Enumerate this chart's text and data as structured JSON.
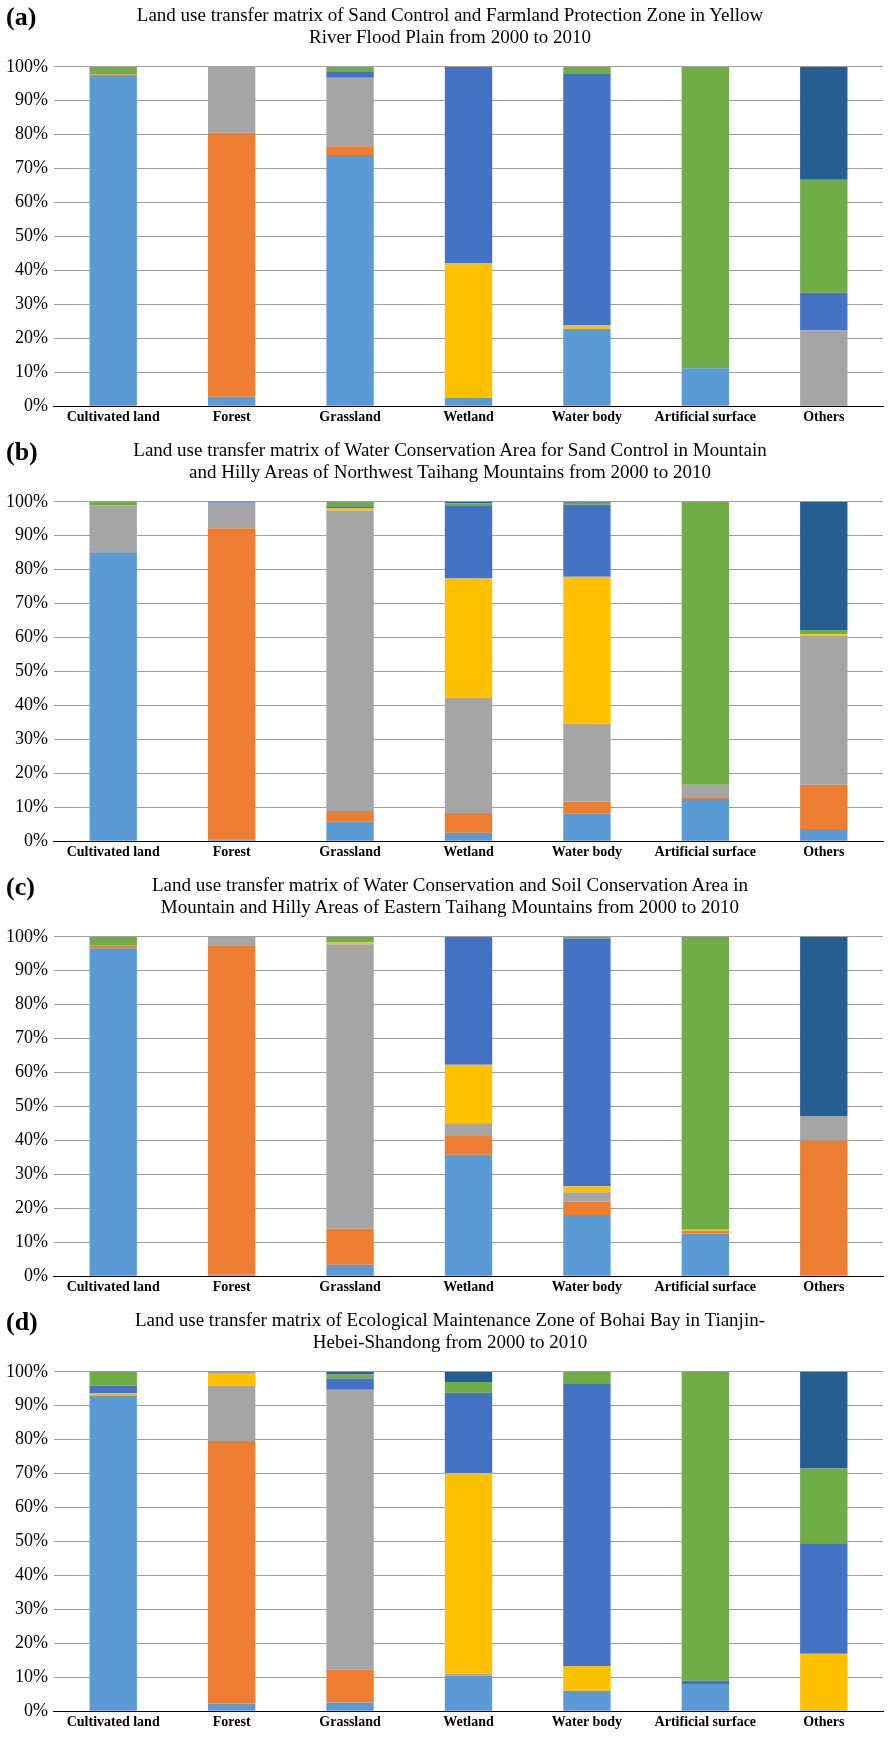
{
  "chart_data": [
    {
      "type": "bar",
      "stacked": true,
      "title": "Land use transfer matrix of Sand Control and Farmland Protection Zone in Yellow River Flood Plain from 2000 to 2010",
      "annotations": [
        "(a)"
      ],
      "categories": [
        "Cultivated land",
        "Forest",
        "Grassland",
        "Wetland",
        "Water body",
        "Artificial surface",
        "Others"
      ],
      "ylim": [
        0,
        100
      ],
      "yticks": [
        {
          "value": 0,
          "label": "0%"
        },
        {
          "value": 10,
          "label": "10%"
        },
        {
          "value": 20,
          "label": "20%"
        },
        {
          "value": 30,
          "label": "30%"
        },
        {
          "value": 40,
          "label": "40%"
        },
        {
          "value": 50,
          "label": "50%"
        },
        {
          "value": 60,
          "label": "60%"
        },
        {
          "value": 70,
          "label": "70%"
        },
        {
          "value": 80,
          "label": "80%"
        },
        {
          "value": 90,
          "label": "90%"
        },
        {
          "value": 100,
          "label": "100%"
        }
      ],
      "grid": "y",
      "series": [
        {
          "color": "#5b9bd5",
          "values": [
            97.3,
            2.8,
            74,
            2.4,
            22.8,
            11.2,
            0
          ]
        },
        {
          "color": "#ed7d31",
          "values": [
            0.4,
            77.8,
            2.6,
            0,
            0,
            0,
            0
          ]
        },
        {
          "color": "#a5a5a5",
          "values": [
            0,
            19.4,
            20.2,
            0,
            0,
            0,
            22.3
          ]
        },
        {
          "color": "#ffc000",
          "values": [
            0,
            0,
            0,
            39.8,
            1,
            0,
            0
          ]
        },
        {
          "color": "#4472c4",
          "values": [
            0,
            0,
            1.9,
            57.8,
            74.1,
            0,
            11.1
          ]
        },
        {
          "color": "#70ad47",
          "values": [
            2.3,
            0,
            1.3,
            0,
            2.1,
            88.8,
            33.3
          ]
        },
        {
          "color": "#255e91",
          "values": [
            0,
            0,
            0,
            0,
            0,
            0,
            33.3
          ]
        }
      ]
    },
    {
      "type": "bar",
      "stacked": true,
      "title": "Land use transfer matrix of Water Conservation Area for Sand Control in Mountain and Hilly Areas of Northwest Taihang Mountains from 2000 to 2010",
      "annotations": [
        "(b)"
      ],
      "categories": [
        "Cultivated land",
        "Forest",
        "Grassland",
        "Wetland",
        "Water body",
        "Artificial surface",
        "Others"
      ],
      "ylim": [
        0,
        100
      ],
      "yticks": [
        {
          "value": 0,
          "label": "0%"
        },
        {
          "value": 10,
          "label": "10%"
        },
        {
          "value": 20,
          "label": "20%"
        },
        {
          "value": 30,
          "label": "30%"
        },
        {
          "value": 40,
          "label": "40%"
        },
        {
          "value": 50,
          "label": "50%"
        },
        {
          "value": 60,
          "label": "60%"
        },
        {
          "value": 70,
          "label": "70%"
        },
        {
          "value": 80,
          "label": "80%"
        },
        {
          "value": 90,
          "label": "90%"
        },
        {
          "value": 100,
          "label": "100%"
        }
      ],
      "grid": "y",
      "series": [
        {
          "color": "#5b9bd5",
          "values": [
            85.1,
            0.6,
            5.9,
            2.5,
            8.1,
            12.4,
            3.6
          ]
        },
        {
          "color": "#ed7d31",
          "values": [
            0.3,
            91.6,
            3,
            5.8,
            3.5,
            0.3,
            13
          ]
        },
        {
          "color": "#a5a5a5",
          "values": [
            13.6,
            7.5,
            88.5,
            34,
            23,
            3.9,
            43.9
          ]
        },
        {
          "color": "#ffc000",
          "values": [
            0,
            0,
            0.8,
            35.1,
            43.3,
            0,
            0.5
          ]
        },
        {
          "color": "#4472c4",
          "values": [
            0,
            0.3,
            0.5,
            21.6,
            21.2,
            0,
            0
          ]
        },
        {
          "color": "#70ad47",
          "values": [
            1,
            0,
            1.3,
            0.6,
            0.6,
            83.4,
            1.2
          ]
        },
        {
          "color": "#255e91",
          "values": [
            0,
            0,
            0,
            0.4,
            0.3,
            0,
            37.8
          ]
        }
      ]
    },
    {
      "type": "bar",
      "stacked": true,
      "title": "Land use transfer matrix of Water Conservation and Soil Conservation Area in Mountain and Hilly Areas of Eastern Taihang Mountains from 2000 to 2010",
      "annotations": [
        "(c)"
      ],
      "categories": [
        "Cultivated land",
        "Forest",
        "Grassland",
        "Wetland",
        "Water body",
        "Artificial surface",
        "Others"
      ],
      "ylim": [
        0,
        100
      ],
      "yticks": [
        {
          "value": 0,
          "label": "0%"
        },
        {
          "value": 10,
          "label": "10%"
        },
        {
          "value": 20,
          "label": "20%"
        },
        {
          "value": 30,
          "label": "30%"
        },
        {
          "value": 40,
          "label": "40%"
        },
        {
          "value": 50,
          "label": "50%"
        },
        {
          "value": 60,
          "label": "60%"
        },
        {
          "value": 70,
          "label": "70%"
        },
        {
          "value": 80,
          "label": "80%"
        },
        {
          "value": 90,
          "label": "90%"
        },
        {
          "value": 100,
          "label": "100%"
        }
      ],
      "grid": "y",
      "series": [
        {
          "color": "#5b9bd5",
          "values": [
            96.6,
            0.4,
            3.4,
            35.8,
            18,
            12.6,
            0
          ]
        },
        {
          "color": "#ed7d31",
          "values": [
            0.8,
            97.1,
            10.6,
            5.5,
            4,
            0.8,
            40
          ]
        },
        {
          "color": "#a5a5a5",
          "values": [
            0,
            2.5,
            83.8,
            3.8,
            2.7,
            0,
            7.2
          ]
        },
        {
          "color": "#ffc000",
          "values": [
            0,
            0,
            0.5,
            17.2,
            1.8,
            0.3,
            0
          ]
        },
        {
          "color": "#4472c4",
          "values": [
            0,
            0,
            0,
            37.7,
            73,
            0,
            0
          ]
        },
        {
          "color": "#70ad47",
          "values": [
            2.6,
            0,
            1.7,
            0,
            0.5,
            86.3,
            0
          ]
        },
        {
          "color": "#255e91",
          "values": [
            0,
            0,
            0,
            0,
            0,
            0,
            52.8
          ]
        }
      ]
    },
    {
      "type": "bar",
      "stacked": true,
      "title": "Land use transfer matrix of Ecological Maintenance Zone of Bohai Bay in Tianjin-Hebei-Shandong from 2000 to 2010",
      "annotations": [
        "(d)"
      ],
      "categories": [
        "Cultivated land",
        "Forest",
        "Grassland",
        "Wetland",
        "Water body",
        "Artificial surface",
        "Others"
      ],
      "ylim": [
        0,
        100
      ],
      "yticks": [
        {
          "value": 0,
          "label": "0%"
        },
        {
          "value": 10,
          "label": "10%"
        },
        {
          "value": 20,
          "label": "20%"
        },
        {
          "value": 30,
          "label": "30%"
        },
        {
          "value": 40,
          "label": "40%"
        },
        {
          "value": 50,
          "label": "50%"
        },
        {
          "value": 60,
          "label": "60%"
        },
        {
          "value": 70,
          "label": "70%"
        },
        {
          "value": 80,
          "label": "80%"
        },
        {
          "value": 90,
          "label": "90%"
        },
        {
          "value": 100,
          "label": "100%"
        }
      ],
      "grid": "y",
      "series": [
        {
          "color": "#5b9bd5",
          "values": [
            93,
            2.3,
            2.6,
            10.5,
            6,
            8,
            0.3
          ]
        },
        {
          "color": "#ed7d31",
          "values": [
            0,
            77.3,
            9.6,
            0,
            0,
            0,
            0
          ]
        },
        {
          "color": "#a5a5a5",
          "values": [
            0,
            16.4,
            82.5,
            0.6,
            0,
            0,
            0
          ]
        },
        {
          "color": "#ffc000",
          "values": [
            0.6,
            3.7,
            0,
            59.1,
            7.3,
            0,
            16.6
          ]
        },
        {
          "color": "#4472c4",
          "values": [
            2.4,
            0.3,
            3.3,
            23.6,
            83.3,
            1,
            32.6
          ]
        },
        {
          "color": "#70ad47",
          "values": [
            4,
            0,
            1.2,
            3.2,
            3.4,
            91,
            22
          ]
        },
        {
          "color": "#255e91",
          "values": [
            0,
            0,
            0.8,
            3,
            0,
            0,
            28.5
          ]
        }
      ]
    }
  ]
}
